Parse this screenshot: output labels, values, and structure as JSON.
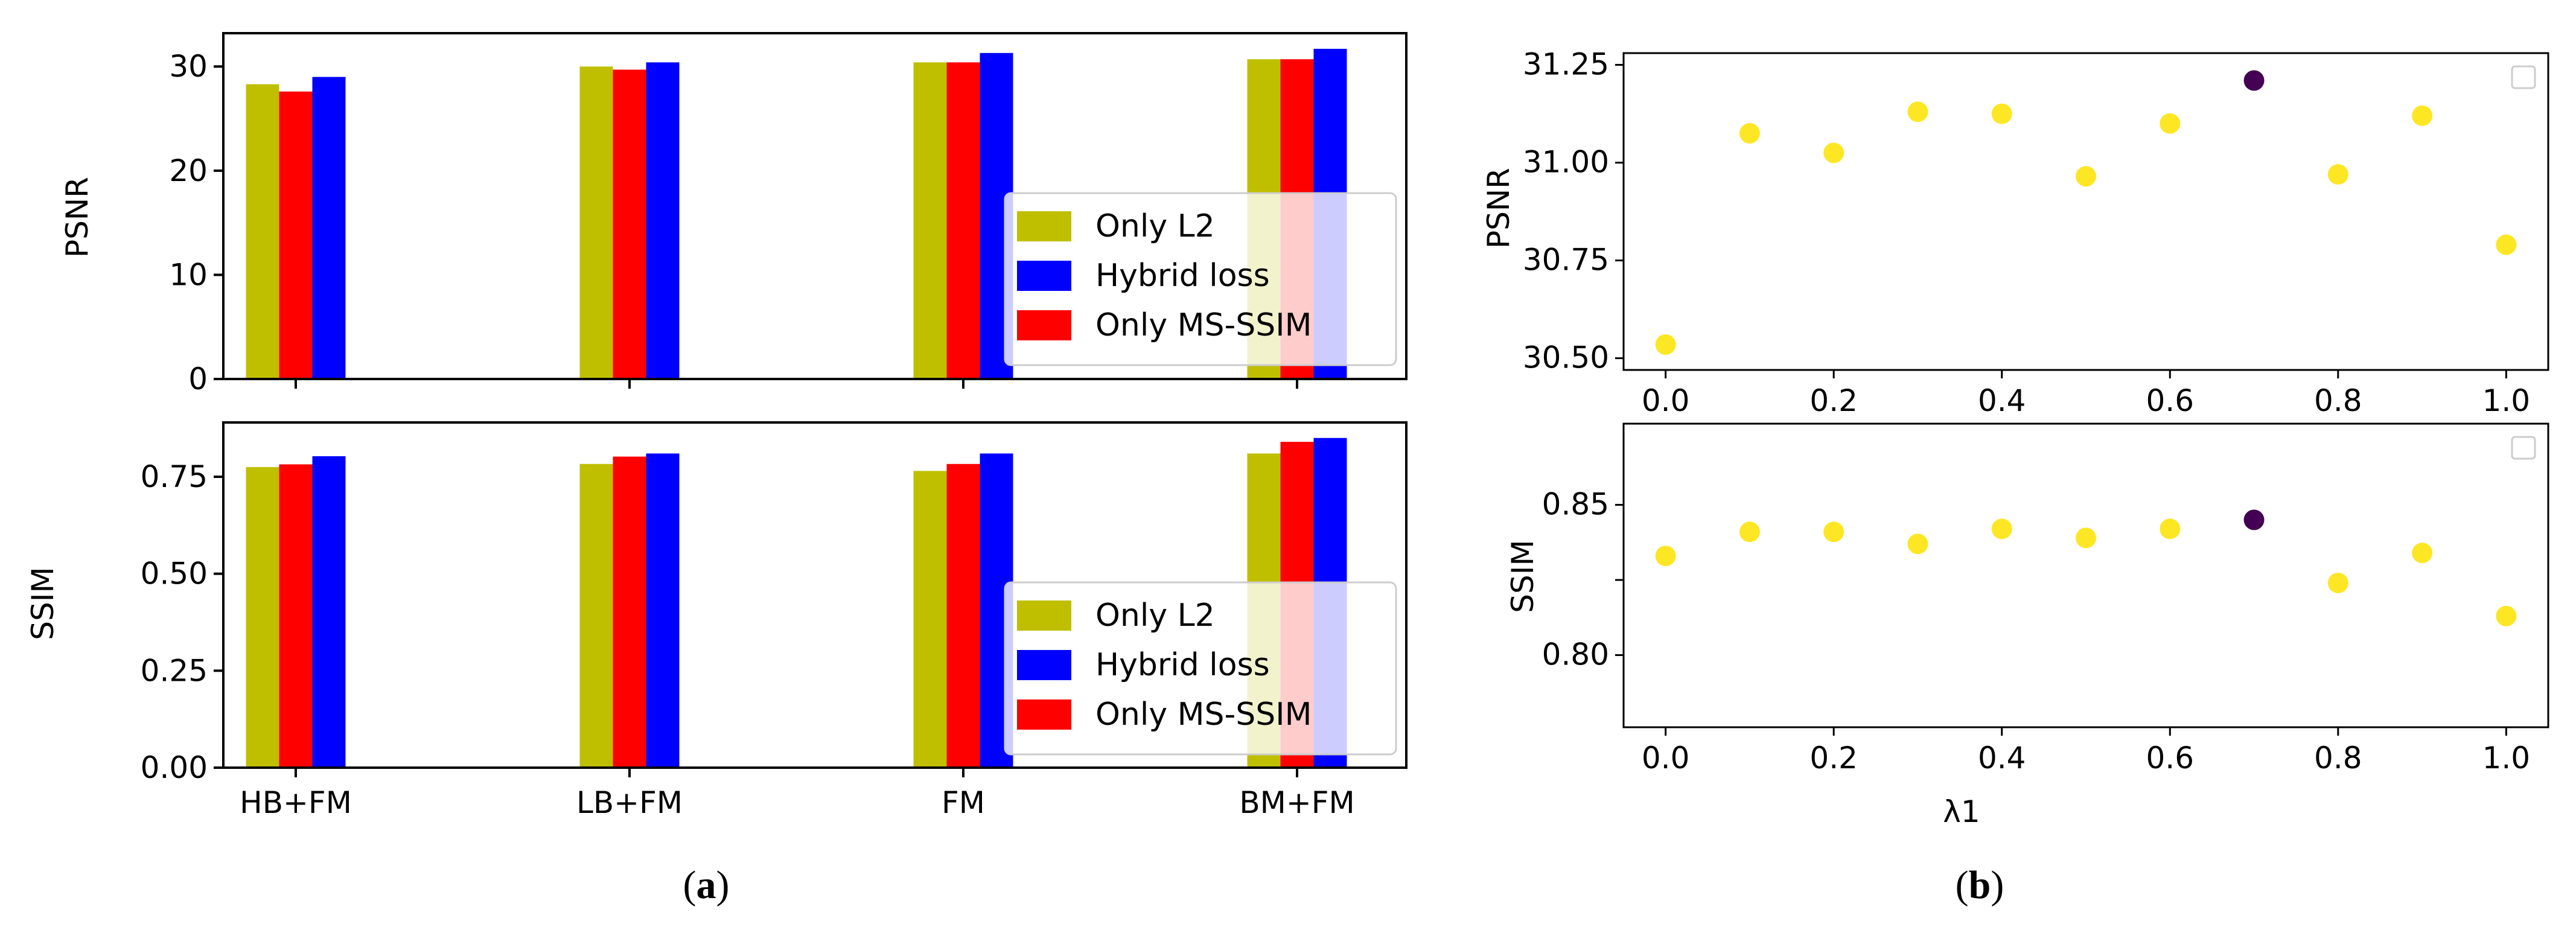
{
  "chart_data": [
    {
      "type": "bar",
      "panel": "a",
      "subplot": "top",
      "ylabel": "PSNR",
      "xlabel": "",
      "categories": [
        "HB+FM",
        "LB+FM",
        "FM",
        "BM+FM"
      ],
      "ylim": [
        0,
        33.2
      ],
      "yticks": [
        0,
        10,
        20,
        30
      ],
      "ytick_labels": [
        "0",
        "10",
        "20",
        "30"
      ],
      "grid": false,
      "legend_position": "lower-right",
      "legend_order": [
        "Only L2",
        "Hybrid loss",
        "Only MS-SSIM"
      ],
      "series": [
        {
          "name": "Only L2",
          "color": "#bfbf00",
          "values": [
            28.3,
            30.0,
            30.4,
            30.7
          ]
        },
        {
          "name": "Only MS-SSIM",
          "color": "#ff0000",
          "values": [
            27.6,
            29.7,
            30.4,
            30.7
          ]
        },
        {
          "name": "Hybrid loss",
          "color": "#0000ff",
          "values": [
            29.0,
            30.4,
            31.3,
            31.7
          ]
        }
      ]
    },
    {
      "type": "bar",
      "panel": "a",
      "subplot": "bottom",
      "ylabel": "SSIM",
      "xlabel": "",
      "categories": [
        "HB+FM",
        "LB+FM",
        "FM",
        "BM+FM"
      ],
      "ylim": [
        0,
        0.89
      ],
      "yticks": [
        0.0,
        0.25,
        0.5,
        0.75
      ],
      "ytick_labels": [
        "0.00",
        "0.25",
        "0.50",
        "0.75"
      ],
      "grid": false,
      "legend_position": "lower-right",
      "legend_order": [
        "Only L2",
        "Hybrid loss",
        "Only MS-SSIM"
      ],
      "series": [
        {
          "name": "Only L2",
          "color": "#bfbf00",
          "values": [
            0.775,
            0.783,
            0.765,
            0.81
          ]
        },
        {
          "name": "Only MS-SSIM",
          "color": "#ff0000",
          "values": [
            0.782,
            0.802,
            0.783,
            0.84
          ]
        },
        {
          "name": "Hybrid loss",
          "color": "#0000ff",
          "values": [
            0.803,
            0.81,
            0.81,
            0.85
          ]
        }
      ]
    },
    {
      "type": "scatter",
      "panel": "b",
      "subplot": "top",
      "ylabel": "PSNR",
      "xlabel": "",
      "xlim": [
        -0.05,
        1.05
      ],
      "ylim": [
        30.47,
        31.28
      ],
      "xticks": [
        0.0,
        0.2,
        0.4,
        0.6,
        0.8,
        1.0
      ],
      "xtick_labels": [
        "0.0",
        "0.2",
        "0.4",
        "0.6",
        "0.8",
        "1.0"
      ],
      "yticks": [
        30.5,
        30.75,
        31.0,
        31.25
      ],
      "ytick_labels": [
        "30.50",
        "30.75",
        "31.00",
        "31.25"
      ],
      "grid": false,
      "legend_position": "top-right",
      "point_color": "#fde725",
      "highlight_color": "#440154",
      "x": [
        0.0,
        0.1,
        0.2,
        0.3,
        0.4,
        0.5,
        0.6,
        0.7,
        0.8,
        0.9,
        1.0
      ],
      "y": [
        30.535,
        31.075,
        31.025,
        31.13,
        31.125,
        30.965,
        31.1,
        31.21,
        30.97,
        31.12,
        30.79
      ],
      "highlight": [
        false,
        false,
        false,
        false,
        false,
        false,
        false,
        true,
        false,
        false,
        false
      ]
    },
    {
      "type": "scatter",
      "panel": "b",
      "subplot": "bottom",
      "ylabel": "SSIM",
      "xlabel": "λ1",
      "xlim": [
        -0.05,
        1.05
      ],
      "ylim": [
        0.776,
        0.877
      ],
      "xticks": [
        0.0,
        0.2,
        0.4,
        0.6,
        0.8,
        1.0
      ],
      "xtick_labels": [
        "0.0",
        "0.2",
        "0.4",
        "0.6",
        "0.8",
        "1.0"
      ],
      "yticks": [
        0.8,
        0.825,
        0.85
      ],
      "ytick_labels": [
        "0.80",
        "",
        "0.85"
      ],
      "grid": false,
      "legend_position": "top-right",
      "point_color": "#fde725",
      "highlight_color": "#440154",
      "x": [
        0.0,
        0.1,
        0.2,
        0.3,
        0.4,
        0.5,
        0.6,
        0.7,
        0.8,
        0.9,
        1.0
      ],
      "y": [
        0.833,
        0.841,
        0.841,
        0.837,
        0.842,
        0.839,
        0.842,
        0.845,
        0.824,
        0.834,
        0.813
      ],
      "highlight": [
        false,
        false,
        false,
        false,
        false,
        false,
        false,
        true,
        false,
        false,
        false
      ]
    }
  ],
  "captions": {
    "a": {
      "open": "(",
      "letter": "a",
      "close": ")"
    },
    "b": {
      "open": "(",
      "letter": "b",
      "close": ")"
    }
  }
}
